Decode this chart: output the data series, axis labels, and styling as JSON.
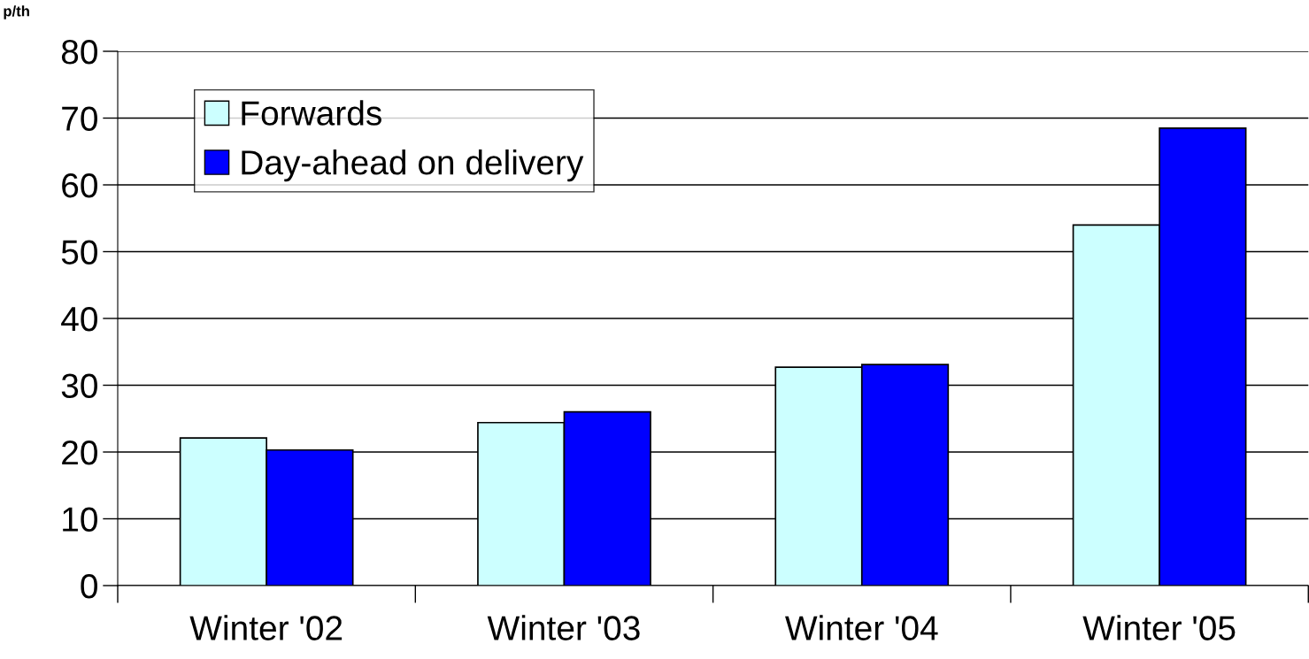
{
  "chart_data": {
    "type": "bar",
    "ylabel": "p/th",
    "categories": [
      "Winter '02",
      "Winter '03",
      "Winter '04",
      "Winter '05"
    ],
    "series": [
      {
        "name": "Forwards",
        "color": "#ccffff",
        "values": [
          22.1,
          24.4,
          32.7,
          54.0
        ]
      },
      {
        "name": "Day-ahead on delivery",
        "color": "#0000ff",
        "values": [
          20.3,
          26.0,
          33.1,
          68.5
        ]
      }
    ],
    "ylim": [
      0,
      80
    ],
    "yticks": [
      0,
      10,
      20,
      30,
      40,
      50,
      60,
      70,
      80
    ],
    "grid": "y",
    "legend": "top left"
  }
}
